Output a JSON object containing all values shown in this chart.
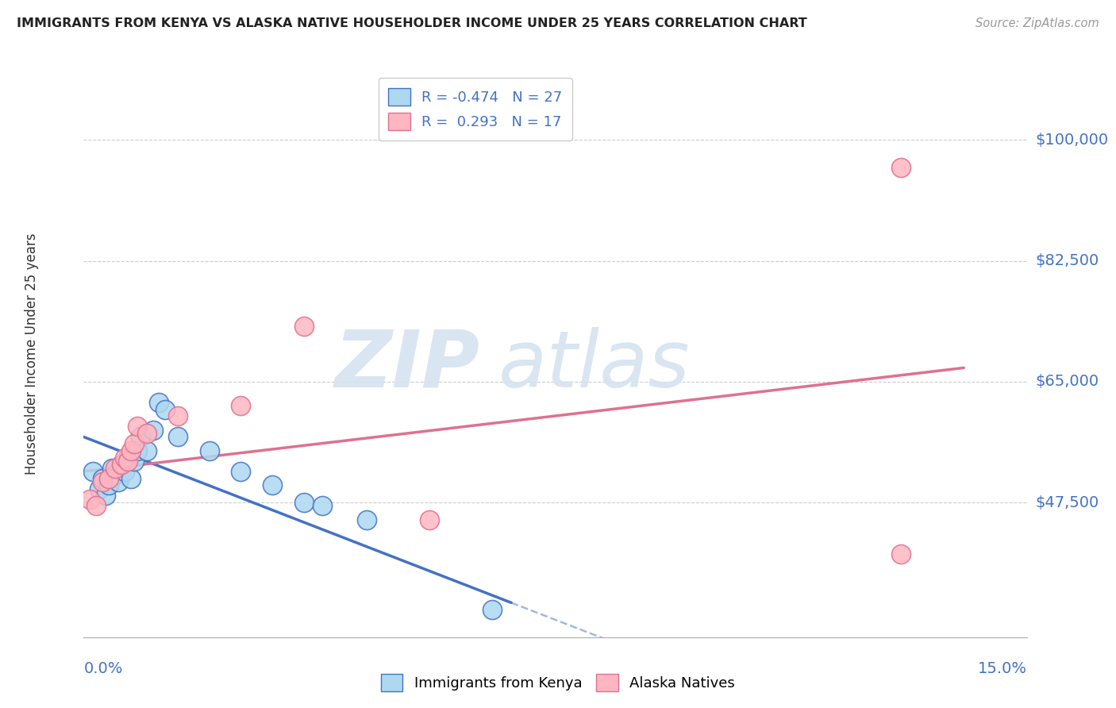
{
  "title": "IMMIGRANTS FROM KENYA VS ALASKA NATIVE HOUSEHOLDER INCOME UNDER 25 YEARS CORRELATION CHART",
  "source": "Source: ZipAtlas.com",
  "ylabel": "Householder Income Under 25 years",
  "xlim": [
    0.0,
    15.0
  ],
  "ylim": [
    28000,
    110000
  ],
  "yticks": [
    47500,
    65000,
    82500,
    100000
  ],
  "ytick_labels": [
    "$47,500",
    "$65,000",
    "$82,500",
    "$100,000"
  ],
  "legend1_r": "-0.474",
  "legend1_n": "27",
  "legend2_r": "0.293",
  "legend2_n": "17",
  "color_blue_fill": "#ADD8F0",
  "color_blue_edge": "#4472C4",
  "color_pink_fill": "#FFB6C1",
  "color_pink_edge": "#E07090",
  "color_blue_line": "#4472C4",
  "color_pink_line": "#E07090",
  "color_axis": "#4472C4",
  "grid_color": "#cccccc",
  "watermark_zip_color": "#d0dce8",
  "watermark_atlas_color": "#d8e4f0",
  "blue_dots": [
    [
      0.15,
      52000
    ],
    [
      0.25,
      49500
    ],
    [
      0.3,
      51000
    ],
    [
      0.35,
      48500
    ],
    [
      0.4,
      50000
    ],
    [
      0.45,
      52500
    ],
    [
      0.5,
      51500
    ],
    [
      0.55,
      50500
    ],
    [
      0.6,
      53000
    ],
    [
      0.65,
      52000
    ],
    [
      0.7,
      54000
    ],
    [
      0.75,
      51000
    ],
    [
      0.8,
      53500
    ],
    [
      0.85,
      55000
    ],
    [
      0.9,
      57000
    ],
    [
      1.0,
      55000
    ],
    [
      1.1,
      58000
    ],
    [
      1.2,
      62000
    ],
    [
      1.3,
      61000
    ],
    [
      1.5,
      57000
    ],
    [
      2.0,
      55000
    ],
    [
      2.5,
      52000
    ],
    [
      3.0,
      50000
    ],
    [
      3.5,
      47500
    ],
    [
      3.8,
      47000
    ],
    [
      4.5,
      45000
    ],
    [
      6.5,
      32000
    ]
  ],
  "pink_dots": [
    [
      0.1,
      48000
    ],
    [
      0.2,
      47000
    ],
    [
      0.3,
      50500
    ],
    [
      0.4,
      51000
    ],
    [
      0.5,
      52500
    ],
    [
      0.6,
      53000
    ],
    [
      0.65,
      54000
    ],
    [
      0.7,
      53500
    ],
    [
      0.75,
      55000
    ],
    [
      0.8,
      56000
    ],
    [
      0.85,
      58500
    ],
    [
      1.0,
      57500
    ],
    [
      1.5,
      60000
    ],
    [
      2.5,
      61500
    ],
    [
      3.5,
      73000
    ],
    [
      5.5,
      45000
    ],
    [
      13.0,
      40000
    ]
  ],
  "pink_dot_high": [
    13.0,
    96000
  ],
  "blue_line_solid_end": 6.8,
  "blue_line_dash_end": 9.5,
  "pink_line_start": 0.0,
  "pink_line_end": 14.0
}
